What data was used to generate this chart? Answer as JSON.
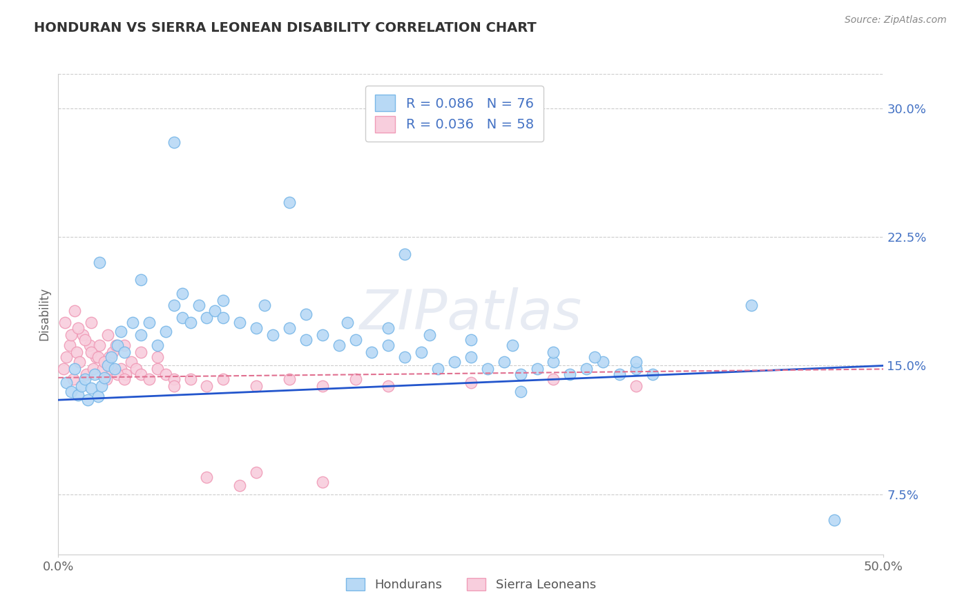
{
  "title": "HONDURAN VS SIERRA LEONEAN DISABILITY CORRELATION CHART",
  "source": "Source: ZipAtlas.com",
  "ylabel": "Disability",
  "xlim": [
    0.0,
    0.5
  ],
  "ylim": [
    0.04,
    0.32
  ],
  "yticks": [
    0.075,
    0.15,
    0.225,
    0.3
  ],
  "ytick_labels": [
    "7.5%",
    "15.0%",
    "22.5%",
    "30.0%"
  ],
  "xticks": [
    0.0,
    0.5
  ],
  "xtick_labels": [
    "0.0%",
    "50.0%"
  ],
  "honduran_R": 0.086,
  "honduran_N": 76,
  "sierra_R": 0.036,
  "sierra_N": 58,
  "honduran_color": "#7ab8e8",
  "honduran_color_fill": "#b8d9f5",
  "sierra_color": "#f09cb8",
  "sierra_color_fill": "#f8cedd",
  "trend_honduran_color": "#2255cc",
  "trend_sierra_color": "#e07090",
  "background_color": "#ffffff",
  "grid_color": "#cccccc",
  "watermark": "ZIPatlas",
  "legend_label_1": "Hondurans",
  "legend_label_2": "Sierra Leoneans",
  "honduran_x": [
    0.005,
    0.008,
    0.01,
    0.012,
    0.014,
    0.016,
    0.018,
    0.02,
    0.022,
    0.024,
    0.026,
    0.028,
    0.03,
    0.032,
    0.034,
    0.036,
    0.038,
    0.04,
    0.045,
    0.05,
    0.055,
    0.06,
    0.065,
    0.07,
    0.075,
    0.08,
    0.085,
    0.09,
    0.095,
    0.1,
    0.11,
    0.12,
    0.13,
    0.14,
    0.15,
    0.16,
    0.17,
    0.18,
    0.19,
    0.2,
    0.21,
    0.22,
    0.23,
    0.24,
    0.25,
    0.26,
    0.27,
    0.28,
    0.29,
    0.3,
    0.31,
    0.32,
    0.33,
    0.34,
    0.35,
    0.36,
    0.025,
    0.05,
    0.075,
    0.1,
    0.125,
    0.15,
    0.175,
    0.2,
    0.225,
    0.25,
    0.275,
    0.3,
    0.325,
    0.35,
    0.07,
    0.14,
    0.21,
    0.28,
    0.42,
    0.47
  ],
  "honduran_y": [
    0.14,
    0.135,
    0.148,
    0.133,
    0.138,
    0.142,
    0.13,
    0.137,
    0.145,
    0.132,
    0.138,
    0.143,
    0.15,
    0.155,
    0.148,
    0.162,
    0.17,
    0.158,
    0.175,
    0.168,
    0.175,
    0.162,
    0.17,
    0.185,
    0.178,
    0.175,
    0.185,
    0.178,
    0.182,
    0.178,
    0.175,
    0.172,
    0.168,
    0.172,
    0.165,
    0.168,
    0.162,
    0.165,
    0.158,
    0.162,
    0.155,
    0.158,
    0.148,
    0.152,
    0.155,
    0.148,
    0.152,
    0.145,
    0.148,
    0.152,
    0.145,
    0.148,
    0.152,
    0.145,
    0.148,
    0.145,
    0.21,
    0.2,
    0.192,
    0.188,
    0.185,
    0.18,
    0.175,
    0.172,
    0.168,
    0.165,
    0.162,
    0.158,
    0.155,
    0.152,
    0.28,
    0.245,
    0.215,
    0.135,
    0.185,
    0.06
  ],
  "sierra_x": [
    0.003,
    0.005,
    0.007,
    0.009,
    0.011,
    0.013,
    0.015,
    0.017,
    0.019,
    0.021,
    0.023,
    0.025,
    0.027,
    0.029,
    0.031,
    0.033,
    0.035,
    0.038,
    0.041,
    0.044,
    0.047,
    0.05,
    0.055,
    0.06,
    0.065,
    0.07,
    0.004,
    0.008,
    0.012,
    0.016,
    0.02,
    0.024,
    0.028,
    0.032,
    0.036,
    0.04,
    0.01,
    0.02,
    0.03,
    0.04,
    0.05,
    0.06,
    0.07,
    0.08,
    0.09,
    0.1,
    0.12,
    0.14,
    0.16,
    0.18,
    0.2,
    0.25,
    0.3,
    0.35,
    0.12,
    0.16,
    0.09,
    0.11
  ],
  "sierra_y": [
    0.148,
    0.155,
    0.162,
    0.142,
    0.158,
    0.152,
    0.168,
    0.145,
    0.162,
    0.148,
    0.155,
    0.162,
    0.148,
    0.142,
    0.155,
    0.158,
    0.162,
    0.148,
    0.145,
    0.152,
    0.148,
    0.145,
    0.142,
    0.148,
    0.145,
    0.142,
    0.175,
    0.168,
    0.172,
    0.165,
    0.158,
    0.155,
    0.152,
    0.148,
    0.145,
    0.142,
    0.182,
    0.175,
    0.168,
    0.162,
    0.158,
    0.155,
    0.138,
    0.142,
    0.138,
    0.142,
    0.138,
    0.142,
    0.138,
    0.142,
    0.138,
    0.14,
    0.142,
    0.138,
    0.088,
    0.082,
    0.085,
    0.08
  ],
  "trend_h_x0": 0.0,
  "trend_h_y0": 0.13,
  "trend_h_x1": 0.5,
  "trend_h_y1": 0.15,
  "trend_s_x0": 0.0,
  "trend_s_y0": 0.143,
  "trend_s_x1": 0.5,
  "trend_s_y1": 0.148
}
